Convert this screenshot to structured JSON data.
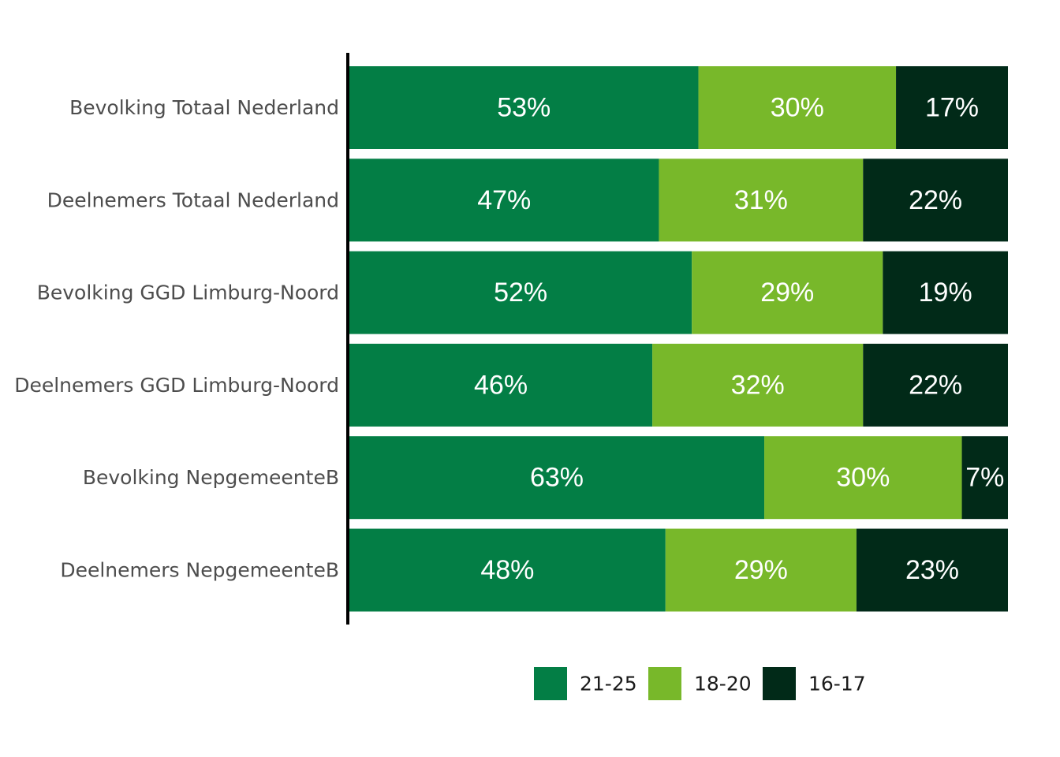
{
  "chart_data": {
    "type": "bar",
    "orientation": "horizontal",
    "stacked": true,
    "normalized": true,
    "categories": [
      "Bevolking Totaal Nederland",
      "Deelnemers Totaal Nederland",
      "Bevolking GGD Limburg-Noord",
      "Deelnemers GGD Limburg-Noord",
      "Bevolking NepgemeenteB",
      "Deelnemers NepgemeenteB"
    ],
    "series": [
      {
        "name": "21-25",
        "color": "#037e45",
        "values": [
          53,
          47,
          52,
          46,
          63,
          48
        ]
      },
      {
        "name": "18-20",
        "color": "#78b82a",
        "values": [
          30,
          31,
          29,
          32,
          30,
          29
        ]
      },
      {
        "name": "16-17",
        "color": "#012a18",
        "values": [
          17,
          22,
          19,
          22,
          7,
          23
        ]
      }
    ],
    "value_suffix": "%",
    "xlim": [
      0,
      100
    ],
    "legend_position": "bottom",
    "grid": false
  }
}
